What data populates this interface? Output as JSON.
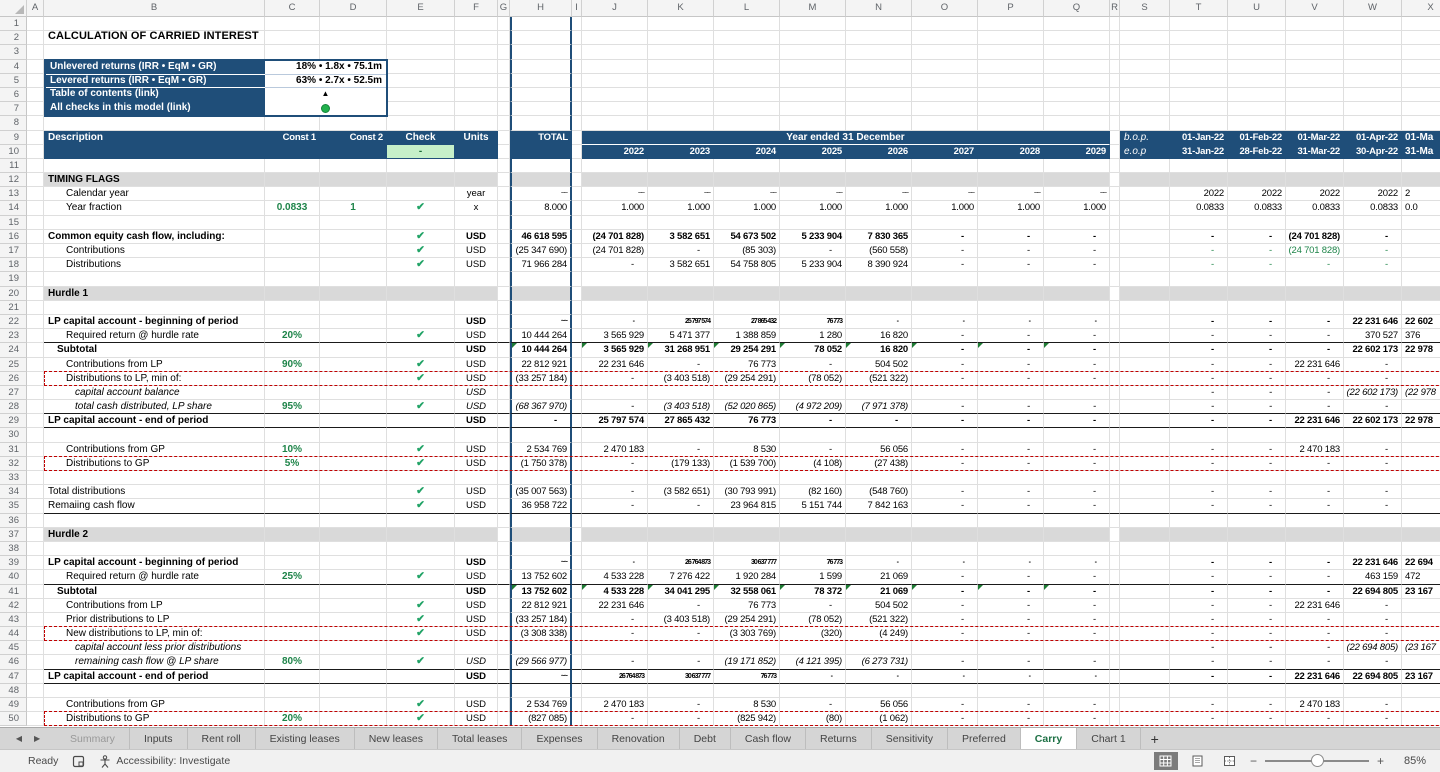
{
  "title": "CALCULATION OF CARRIED INTEREST",
  "info_box": {
    "rows": [
      {
        "label": "Unlevered returns (IRR • EqM • GR)",
        "value": "18% • 1.8x • 75.1m",
        "type": "text"
      },
      {
        "label": "Levered returns (IRR • EqM • GR)",
        "value": "63% • 2.7x • 52.5m",
        "type": "text"
      },
      {
        "label": "Table of contents (link)",
        "value": "▲",
        "type": "triangle"
      },
      {
        "label": "All checks in this model (link)",
        "value": "●",
        "type": "dot"
      }
    ]
  },
  "grid": {
    "col_letters": [
      "A",
      "B",
      "C",
      "D",
      "E",
      "F",
      "G",
      "H",
      "I",
      "J",
      "K",
      "L",
      "M",
      "N",
      "O",
      "P",
      "Q",
      "R",
      "S",
      "T",
      "U",
      "V",
      "W",
      "X"
    ],
    "header": {
      "description": "Description",
      "const1": "Const 1",
      "const2": "Const 2",
      "check": "Check",
      "check_status": "-",
      "units": "Units",
      "total": "TOTAL",
      "year_banner": "Year ended 31 December",
      "years": [
        "2022",
        "2023",
        "2024",
        "2025",
        "2026",
        "2027",
        "2028",
        "2029"
      ],
      "bop_label": "b.o.p.",
      "eop_label": "e.o.p",
      "bop_dates": [
        "01-Jan-22",
        "01-Feb-22",
        "01-Mar-22",
        "01-Apr-22",
        "01-Ma"
      ],
      "eop_dates": [
        "31-Jan-22",
        "28-Feb-22",
        "31-Mar-22",
        "30-Apr-22",
        "31-Ma"
      ]
    },
    "rows": [
      {
        "n": 12,
        "kind": "section",
        "label": "TIMING FLAGS"
      },
      {
        "n": 13,
        "label": "Calendar year",
        "ind": 2,
        "units": "year",
        "total": "~~",
        "sq": true,
        "years": [
          "~~",
          "~~",
          "~~",
          "~~",
          "~~",
          "~~",
          "~~",
          "~~"
        ],
        "right": [
          "2022",
          "2022",
          "2022",
          "2022",
          "2"
        ]
      },
      {
        "n": 14,
        "label": "Year fraction",
        "ind": 2,
        "c1": "0.0833",
        "c2": "1",
        "chk": true,
        "units": "x",
        "total": "8.000",
        "years": [
          "1.000",
          "1.000",
          "1.000",
          "1.000",
          "1.000",
          "1.000",
          "1.000",
          "1.000"
        ],
        "right": [
          "0.0833",
          "0.0833",
          "0.0833",
          "0.0833",
          "0.0"
        ]
      },
      {
        "n": 16,
        "label": "Common equity cash flow, including:",
        "bold": true,
        "chk": true,
        "units": "USD",
        "total": "46 618 595",
        "years": [
          "(24 701 828)",
          "3 582 651",
          "54 673 502",
          "5 233 904",
          "7 830 365",
          "-",
          "-",
          "-"
        ],
        "right": [
          "-",
          "-",
          "(24 701 828)",
          "-",
          ""
        ]
      },
      {
        "n": 17,
        "label": "Contributions",
        "ind": 2,
        "chk": true,
        "units": "USD",
        "total": "(25 347 690)",
        "years": [
          "(24 701 828)",
          "-",
          "(85 303)",
          "-",
          "(560 558)",
          "-",
          "-",
          "-"
        ],
        "right": [
          "-",
          "-",
          "(24 701 828)",
          "-",
          ""
        ],
        "green_right": true
      },
      {
        "n": 18,
        "label": "Distributions",
        "ind": 2,
        "chk": true,
        "units": "USD",
        "total": "71 966 284",
        "years": [
          "-",
          "3 582 651",
          "54 758 805",
          "5 233 904",
          "8 390 924",
          "-",
          "-",
          "-"
        ],
        "right": [
          "-",
          "-",
          "-",
          "-",
          ""
        ],
        "green_right": true
      },
      {
        "n": 20,
        "kind": "section",
        "label": "Hurdle 1"
      },
      {
        "n": 22,
        "label": "LP capital account - beginning of period",
        "bold": true,
        "units": "USD",
        "total": "~~",
        "sq": true,
        "years": [
          "-",
          "25 797 574",
          "27 865 432",
          "76 773",
          "-",
          "-",
          "-",
          "-"
        ],
        "right": [
          "-",
          "-",
          "-",
          "22 231 646",
          "22 602"
        ]
      },
      {
        "n": 23,
        "label": "Required return @ hurdle rate",
        "ind": 2,
        "c1": "20%",
        "chk": true,
        "units": "USD",
        "total": "10 444 264",
        "ul": true,
        "years": [
          "3 565 929",
          "5 471 377",
          "1 388 859",
          "1 280",
          "16 820",
          "-",
          "-",
          "-"
        ],
        "right": [
          "-",
          "-",
          "-",
          "370 527",
          "376"
        ]
      },
      {
        "n": 24,
        "label": "Subtotal",
        "ind": 1,
        "bold": true,
        "units": "USD",
        "total": "10 444 264",
        "tri": true,
        "years": [
          "3 565 929",
          "31 268 951",
          "29 254 291",
          "78 052",
          "16 820",
          "-",
          "-",
          "-"
        ],
        "right": [
          "-",
          "-",
          "-",
          "22 602 173",
          "22 978"
        ]
      },
      {
        "n": 25,
        "label": "Contributions from LP",
        "ind": 2,
        "c1": "90%",
        "chk": true,
        "units": "USD",
        "total": "22 812 921",
        "years": [
          "22 231 646",
          "-",
          "76 773",
          "-",
          "504 502",
          "-",
          "-",
          "-"
        ],
        "right": [
          "-",
          "-",
          "22 231 646",
          "-",
          ""
        ]
      },
      {
        "n": 26,
        "label": "Distributions to LP, min of:",
        "ind": 2,
        "chk": true,
        "units": "USD",
        "total": "(33 257 184)",
        "dash": true,
        "years": [
          "-",
          "(3 403 518)",
          "(29 254 291)",
          "(78 052)",
          "(521 322)",
          "-",
          "-",
          "-"
        ],
        "right": [
          "-",
          "-",
          "-",
          "-",
          ""
        ]
      },
      {
        "n": 27,
        "label": "capital account balance",
        "ind": 3,
        "italic": true,
        "units": "USD",
        "units_it": true,
        "vital": true,
        "years": [
          "",
          "",
          "",
          "",
          "",
          "",
          "",
          ""
        ],
        "right": [
          "-",
          "-",
          "-",
          "(22 602 173)",
          "(22 978"
        ]
      },
      {
        "n": 28,
        "label": "total cash distributed, LP share",
        "ind": 3,
        "italic": true,
        "c1": "95%",
        "chk": true,
        "units": "USD",
        "units_it": true,
        "total": "(68 367 970)",
        "vital": true,
        "ul": true,
        "years": [
          "-",
          "(3 403 518)",
          "(52 020 865)",
          "(4 972 209)",
          "(7 971 378)",
          "-",
          "-",
          "-"
        ],
        "right": [
          "-",
          "-",
          "-",
          "-",
          ""
        ]
      },
      {
        "n": 29,
        "label": "LP capital account - end of period",
        "bold": true,
        "units": "USD",
        "total": "-",
        "ul": true,
        "years": [
          "25 797 574",
          "27 865 432",
          "76 773",
          "-",
          "-",
          "-",
          "-",
          "-"
        ],
        "right": [
          "-",
          "-",
          "22 231 646",
          "22 602 173",
          "22 978"
        ]
      },
      {
        "n": 31,
        "label": "Contributions from GP",
        "ind": 2,
        "c1": "10%",
        "chk": true,
        "units": "USD",
        "total": "2 534 769",
        "years": [
          "2 470 183",
          "-",
          "8 530",
          "-",
          "56 056",
          "-",
          "-",
          "-"
        ],
        "right": [
          "-",
          "-",
          "2 470 183",
          "-",
          ""
        ]
      },
      {
        "n": 32,
        "label": "Distributions to GP",
        "ind": 2,
        "c1": "5%",
        "chk": true,
        "units": "USD",
        "total": "(1 750 378)",
        "dash": true,
        "years": [
          "-",
          "(179 133)",
          "(1 539 700)",
          "(4 108)",
          "(27 438)",
          "-",
          "-",
          "-"
        ],
        "right": [
          "-",
          "-",
          "-",
          "-",
          ""
        ]
      },
      {
        "n": 34,
        "label": "Total distributions",
        "chk": true,
        "units": "USD",
        "total": "(35 007 563)",
        "years": [
          "-",
          "(3 582 651)",
          "(30 793 991)",
          "(82 160)",
          "(548 760)",
          "-",
          "-",
          "-"
        ],
        "right": [
          "-",
          "-",
          "-",
          "-",
          ""
        ]
      },
      {
        "n": 35,
        "label": "Remaiing cash flow",
        "chk": true,
        "units": "USD",
        "total": "36 958 722",
        "ul": true,
        "years": [
          "-",
          "-",
          "23 964 815",
          "5 151 744",
          "7 842 163",
          "-",
          "-",
          "-"
        ],
        "right": [
          "-",
          "-",
          "-",
          "-",
          ""
        ]
      },
      {
        "n": 37,
        "kind": "section",
        "label": "Hurdle 2"
      },
      {
        "n": 39,
        "label": "LP capital account - beginning of period",
        "bold": true,
        "units": "USD",
        "total": "~~",
        "sq": true,
        "years": [
          "-",
          "26 764 873",
          "30 637 777",
          "76 773",
          "-",
          "-",
          "-",
          "-"
        ],
        "right": [
          "-",
          "-",
          "-",
          "22 231 646",
          "22 694"
        ]
      },
      {
        "n": 40,
        "label": "Required return @ hurdle rate",
        "ind": 2,
        "c1": "25%",
        "chk": true,
        "units": "USD",
        "total": "13 752 602",
        "ul": true,
        "years": [
          "4 533 228",
          "7 276 422",
          "1 920 284",
          "1 599",
          "21 069",
          "-",
          "-",
          "-"
        ],
        "right": [
          "-",
          "-",
          "-",
          "463 159",
          "472"
        ]
      },
      {
        "n": 41,
        "label": "Subtotal",
        "ind": 1,
        "bold": true,
        "units": "USD",
        "total": "13 752 602",
        "tri": true,
        "years": [
          "4 533 228",
          "34 041 295",
          "32 558 061",
          "78 372",
          "21 069",
          "-",
          "-",
          "-"
        ],
        "right": [
          "-",
          "-",
          "-",
          "22 694 805",
          "23 167"
        ]
      },
      {
        "n": 42,
        "label": "Contributions from LP",
        "ind": 2,
        "chk": true,
        "units": "USD",
        "total": "22 812 921",
        "years": [
          "22 231 646",
          "-",
          "76 773",
          "-",
          "504 502",
          "-",
          "-",
          "-"
        ],
        "right": [
          "-",
          "-",
          "22 231 646",
          "-",
          ""
        ]
      },
      {
        "n": 43,
        "label": "Prior distributions to LP",
        "ind": 2,
        "chk": true,
        "units": "USD",
        "total": "(33 257 184)",
        "years": [
          "-",
          "(3 403 518)",
          "(29 254 291)",
          "(78 052)",
          "(521 322)",
          "-",
          "-",
          "-"
        ],
        "right": [
          "-",
          "-",
          "-",
          "-",
          ""
        ]
      },
      {
        "n": 44,
        "label": "New distributions to LP, min of:",
        "ind": 2,
        "chk": true,
        "units": "USD",
        "total": "(3 308 338)",
        "dash": true,
        "years": [
          "-",
          "-",
          "(3 303 769)",
          "(320)",
          "(4 249)",
          "-",
          "-",
          "-"
        ],
        "right": [
          "-",
          "-",
          "-",
          "-",
          ""
        ]
      },
      {
        "n": 45,
        "label": "capital account less prior distributions",
        "ind": 3,
        "italic": true,
        "vital": true,
        "years": [
          "",
          "",
          "",
          "",
          "",
          "",
          "",
          ""
        ],
        "right": [
          "-",
          "-",
          "-",
          "(22 694 805)",
          "(23 167"
        ]
      },
      {
        "n": 46,
        "label": "remaining cash flow @ LP share",
        "ind": 3,
        "italic": true,
        "c1": "80%",
        "chk": true,
        "units": "USD",
        "units_it": true,
        "total": "(29 566 977)",
        "vital": true,
        "ul": true,
        "years": [
          "-",
          "-",
          "(19 171 852)",
          "(4 121 395)",
          "(6 273 731)",
          "-",
          "-",
          "-"
        ],
        "right": [
          "-",
          "-",
          "-",
          "-",
          ""
        ]
      },
      {
        "n": 47,
        "label": "LP capital account - end of period",
        "bold": true,
        "units": "USD",
        "total": "~~",
        "sq": true,
        "ul": true,
        "years": [
          "26 764 873",
          "30 637 777",
          "76 773",
          "-",
          "-",
          "-",
          "-",
          "-"
        ],
        "right": [
          "-",
          "-",
          "22 231 646",
          "22 694 805",
          "23 167"
        ]
      },
      {
        "n": 49,
        "label": "Contributions from GP",
        "ind": 2,
        "chk": true,
        "units": "USD",
        "total": "2 534 769",
        "years": [
          "2 470 183",
          "-",
          "8 530",
          "-",
          "56 056",
          "-",
          "-",
          "-"
        ],
        "right": [
          "-",
          "-",
          "2 470 183",
          "-",
          ""
        ]
      },
      {
        "n": 50,
        "label": "Distributions to GP",
        "ind": 2,
        "c1": "20%",
        "chk": true,
        "units": "USD",
        "total": "(827 085)",
        "dash": true,
        "years": [
          "-",
          "-",
          "(825 942)",
          "(80)",
          "(1 062)",
          "-",
          "-",
          "-"
        ],
        "right": [
          "-",
          "-",
          "-",
          "-",
          ""
        ]
      }
    ]
  },
  "sheet_tabs": {
    "tabs": [
      "Summary",
      "Inputs",
      "Rent roll",
      "Existing leases",
      "New leases",
      "Total leases",
      "Expenses",
      "Renovation",
      "Debt",
      "Cash flow",
      "Returns",
      "Sensitivity",
      "Preferred",
      "Carry",
      "Chart 1"
    ],
    "active": "Carry",
    "add_label": "+"
  },
  "status_bar": {
    "ready": "Ready",
    "accessibility": "Accessibility: Investigate",
    "zoom": "85%"
  },
  "colors": {
    "header_blue": "#1F4E79",
    "check_green": "#21A366",
    "const_green": "#1E8449",
    "check_cell_bg": "#C6F0C9",
    "section_gray": "#D9D9D9",
    "dash_red": "#C00000",
    "active_tab_green": "#1E7145"
  }
}
